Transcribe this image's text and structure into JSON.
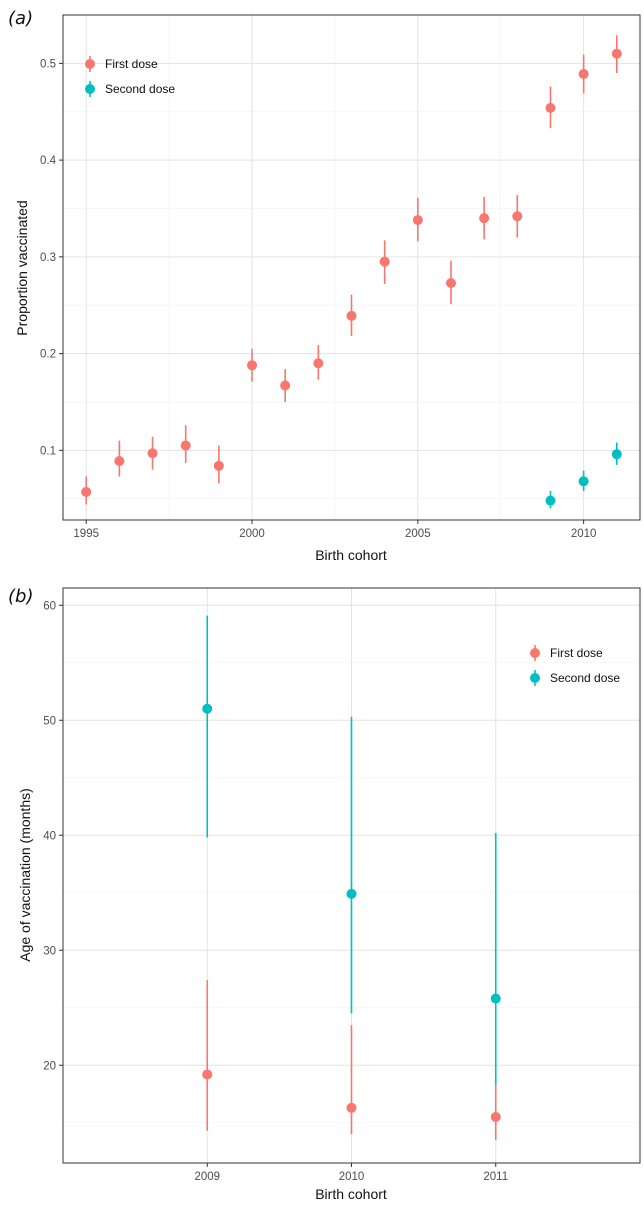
{
  "colors": {
    "first": "#F8766D",
    "second": "#00BFC4"
  },
  "chart_data": [
    {
      "type": "scatter",
      "panel_label": "a",
      "xlabel": "Birth cohort",
      "ylabel": "Proportion vaccinated",
      "xlim": [
        1994.3,
        2011.7
      ],
      "ylim": [
        0.028,
        0.55
      ],
      "x_ticks": [
        1995,
        2000,
        2005,
        2010
      ],
      "y_ticks": [
        0.1,
        0.2,
        0.3,
        0.4,
        0.5
      ],
      "grid": true,
      "legend_position": "top-left",
      "series": [
        {
          "name": "First dose",
          "color": "#F8766D",
          "points": [
            {
              "x": 1995,
              "y": 0.057,
              "lo": 0.044,
              "hi": 0.073
            },
            {
              "x": 1996,
              "y": 0.089,
              "lo": 0.073,
              "hi": 0.11
            },
            {
              "x": 1997,
              "y": 0.097,
              "lo": 0.08,
              "hi": 0.114
            },
            {
              "x": 1998,
              "y": 0.105,
              "lo": 0.087,
              "hi": 0.126
            },
            {
              "x": 1999,
              "y": 0.084,
              "lo": 0.066,
              "hi": 0.105
            },
            {
              "x": 2000,
              "y": 0.188,
              "lo": 0.171,
              "hi": 0.205
            },
            {
              "x": 2001,
              "y": 0.167,
              "lo": 0.15,
              "hi": 0.184
            },
            {
              "x": 2002,
              "y": 0.19,
              "lo": 0.173,
              "hi": 0.209
            },
            {
              "x": 2003,
              "y": 0.239,
              "lo": 0.218,
              "hi": 0.261
            },
            {
              "x": 2004,
              "y": 0.295,
              "lo": 0.272,
              "hi": 0.317
            },
            {
              "x": 2005,
              "y": 0.338,
              "lo": 0.316,
              "hi": 0.361
            },
            {
              "x": 2006,
              "y": 0.273,
              "lo": 0.251,
              "hi": 0.296
            },
            {
              "x": 2007,
              "y": 0.34,
              "lo": 0.318,
              "hi": 0.362
            },
            {
              "x": 2008,
              "y": 0.342,
              "lo": 0.32,
              "hi": 0.364
            },
            {
              "x": 2009,
              "y": 0.454,
              "lo": 0.433,
              "hi": 0.476
            },
            {
              "x": 2010,
              "y": 0.489,
              "lo": 0.469,
              "hi": 0.509
            },
            {
              "x": 2011,
              "y": 0.51,
              "lo": 0.49,
              "hi": 0.529
            }
          ]
        },
        {
          "name": "Second dose",
          "color": "#00BFC4",
          "points": [
            {
              "x": 2009,
              "y": 0.048,
              "lo": 0.04,
              "hi": 0.058
            },
            {
              "x": 2010,
              "y": 0.068,
              "lo": 0.058,
              "hi": 0.079
            },
            {
              "x": 2011,
              "y": 0.096,
              "lo": 0.085,
              "hi": 0.108
            }
          ]
        }
      ]
    },
    {
      "type": "scatter",
      "panel_label": "b",
      "xlabel": "Birth cohort",
      "ylabel": "Age of vaccination (months)",
      "categories": [
        "2009",
        "2010",
        "2011"
      ],
      "ylim": [
        11.5,
        61.5
      ],
      "y_ticks": [
        20,
        30,
        40,
        50,
        60
      ],
      "grid": true,
      "legend_position": "top-right",
      "series": [
        {
          "name": "First dose",
          "color": "#F8766D",
          "points": [
            {
              "x": "2009",
              "y": 19.2,
              "lo": 14.3,
              "hi": 27.4
            },
            {
              "x": "2010",
              "y": 16.3,
              "lo": 14.0,
              "hi": 23.5
            },
            {
              "x": "2011",
              "y": 15.5,
              "lo": 13.5,
              "hi": 18.4
            }
          ]
        },
        {
          "name": "Second dose",
          "color": "#00BFC4",
          "points": [
            {
              "x": "2009",
              "y": 51.0,
              "lo": 39.8,
              "hi": 59.1
            },
            {
              "x": "2010",
              "y": 34.9,
              "lo": 24.5,
              "hi": 50.3
            },
            {
              "x": "2011",
              "y": 25.8,
              "lo": 18.3,
              "hi": 40.2
            }
          ]
        }
      ]
    }
  ]
}
